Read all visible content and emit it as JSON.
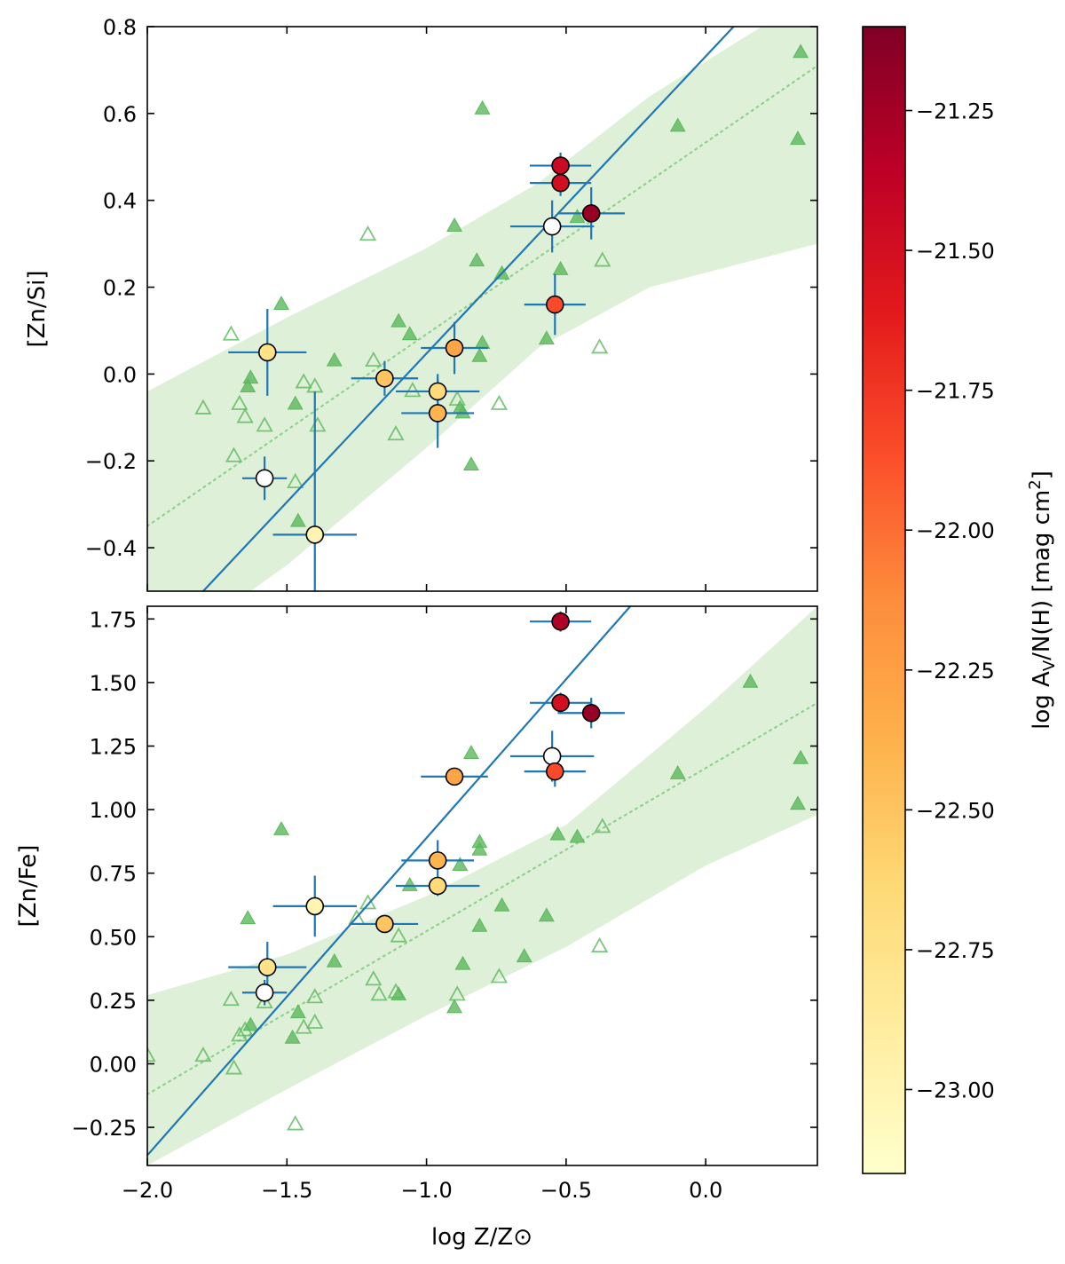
{
  "chart_data": [
    {
      "type": "scatter",
      "panel": "top",
      "ylabel": "[Zn/Si]",
      "xlim": [
        -2.0,
        0.4
      ],
      "ylim": [
        -0.5,
        0.8
      ],
      "yticks": [
        -0.4,
        -0.2,
        0.0,
        0.2,
        0.4,
        0.6,
        0.8
      ],
      "ytick_labels": [
        "−0.4",
        "−0.2",
        "0.0",
        "0.2",
        "0.4",
        "0.6",
        "0.8"
      ],
      "fit_line": {
        "x": [
          -1.8,
          0.1
        ],
        "y": [
          -0.5,
          0.8
        ]
      },
      "reference_fit": {
        "x": [
          -2.0,
          0.4
        ],
        "y": [
          -0.35,
          0.71
        ]
      },
      "confidence_band": {
        "x": [
          -2.0,
          -1.5,
          -1.0,
          -0.6,
          -0.2,
          0.4
        ],
        "upper": [
          -0.04,
          0.13,
          0.29,
          0.44,
          0.64,
          0.88
        ],
        "lower": [
          -0.67,
          -0.44,
          -0.17,
          0.06,
          0.2,
          0.3
        ]
      },
      "comparison_filled": [
        [
          -1.63,
          -0.01
        ],
        [
          -1.64,
          -0.03
        ],
        [
          -1.52,
          0.16
        ],
        [
          -1.47,
          -0.07
        ],
        [
          -1.46,
          -0.34
        ],
        [
          -1.33,
          0.03
        ],
        [
          -1.1,
          0.12
        ],
        [
          -1.06,
          0.09
        ],
        [
          -0.9,
          0.34
        ],
        [
          -0.88,
          -0.08
        ],
        [
          -0.87,
          -0.09
        ],
        [
          -0.84,
          -0.21
        ],
        [
          -0.82,
          0.26
        ],
        [
          -0.81,
          0.04
        ],
        [
          -0.8,
          0.61
        ],
        [
          -0.8,
          0.07
        ],
        [
          -0.73,
          0.23
        ],
        [
          -0.57,
          0.08
        ],
        [
          -0.52,
          0.24
        ],
        [
          -0.46,
          0.36
        ],
        [
          -0.1,
          0.57
        ],
        [
          0.33,
          0.54
        ],
        [
          0.34,
          0.74
        ]
      ],
      "comparison_open": [
        [
          -1.8,
          -0.08
        ],
        [
          -1.7,
          0.09
        ],
        [
          -1.69,
          -0.19
        ],
        [
          -1.67,
          -0.07
        ],
        [
          -1.65,
          -0.1
        ],
        [
          -1.58,
          -0.12
        ],
        [
          -1.47,
          -0.25
        ],
        [
          -1.44,
          -0.02
        ],
        [
          -1.4,
          -0.03
        ],
        [
          -1.39,
          -0.12
        ],
        [
          -1.21,
          0.32
        ],
        [
          -1.19,
          0.03
        ],
        [
          -1.05,
          -0.04
        ],
        [
          -1.11,
          -0.14
        ],
        [
          -0.89,
          -0.06
        ],
        [
          -0.74,
          -0.07
        ],
        [
          -0.38,
          0.06
        ],
        [
          -0.37,
          0.26
        ]
      ],
      "sample": [
        {
          "x": -0.52,
          "y": 0.48,
          "xerr": 0.11,
          "yerr": 0.03,
          "c": -21.45
        },
        {
          "x": -0.52,
          "y": 0.44,
          "xerr": 0.11,
          "yerr": 0.03,
          "c": -21.5
        },
        {
          "x": -0.41,
          "y": 0.37,
          "xerr": 0.12,
          "yerr": 0.06,
          "c": -21.2
        },
        {
          "x": -0.55,
          "y": 0.34,
          "xerr": 0.15,
          "yerr": 0.06,
          "c": null
        },
        {
          "x": -0.54,
          "y": 0.16,
          "xerr": 0.11,
          "yerr": 0.07,
          "c": -21.85
        },
        {
          "x": -0.9,
          "y": 0.06,
          "xerr": 0.12,
          "yerr": 0.06,
          "c": -22.3
        },
        {
          "x": -1.15,
          "y": -0.01,
          "xerr": 0.12,
          "yerr": 0.04,
          "c": -22.5
        },
        {
          "x": -0.96,
          "y": -0.04,
          "xerr": 0.15,
          "yerr": 0.04,
          "c": -22.65
        },
        {
          "x": -0.96,
          "y": -0.09,
          "xerr": 0.13,
          "yerr": 0.08,
          "c": -22.4
        },
        {
          "x": -1.57,
          "y": 0.05,
          "xerr": 0.14,
          "yerr": 0.1,
          "c": -22.75
        },
        {
          "x": -1.58,
          "y": -0.24,
          "xerr": 0.08,
          "yerr": 0.05,
          "c": null
        },
        {
          "x": -1.4,
          "y": -0.37,
          "xerr": 0.15,
          "yerr": 0.33,
          "c": -23.0
        }
      ]
    },
    {
      "type": "scatter",
      "panel": "bottom",
      "xlabel": "log Z/Z⊙",
      "ylabel": "[Zn/Fe]",
      "xlim": [
        -2.0,
        0.4
      ],
      "ylim": [
        -0.4,
        1.8
      ],
      "yticks": [
        -0.25,
        0.0,
        0.25,
        0.5,
        0.75,
        1.0,
        1.25,
        1.5,
        1.75
      ],
      "ytick_labels": [
        "−0.25",
        "0.00",
        "0.25",
        "0.50",
        "0.75",
        "1.00",
        "1.25",
        "1.50",
        "1.75"
      ],
      "xticks": [
        -2.0,
        -1.5,
        -1.0,
        -0.5,
        0.0
      ],
      "xtick_labels": [
        "−2.0",
        "−1.5",
        "−1.0",
        "−0.5",
        "0.0"
      ],
      "fit_line": {
        "x": [
          -2.0,
          -0.27
        ],
        "y": [
          -0.36,
          1.8
        ]
      },
      "reference_fit": {
        "x": [
          -2.0,
          0.4
        ],
        "y": [
          -0.12,
          1.42
        ]
      },
      "confidence_band": {
        "x": [
          -2.0,
          -1.5,
          -1.0,
          -0.5,
          0.0,
          0.4
        ],
        "upper": [
          0.27,
          0.43,
          0.66,
          0.94,
          1.4,
          1.8
        ],
        "lower": [
          -0.4,
          -0.1,
          0.19,
          0.46,
          0.78,
          0.98
        ]
      },
      "comparison_filled": [
        [
          -1.63,
          0.15
        ],
        [
          -1.64,
          0.57
        ],
        [
          -1.52,
          0.92
        ],
        [
          -1.48,
          0.1
        ],
        [
          -1.46,
          0.2
        ],
        [
          -1.33,
          0.4
        ],
        [
          -1.1,
          0.27
        ],
        [
          -1.06,
          0.7
        ],
        [
          -0.9,
          0.22
        ],
        [
          -0.88,
          0.78
        ],
        [
          -0.87,
          0.39
        ],
        [
          -0.84,
          1.22
        ],
        [
          -0.81,
          0.54
        ],
        [
          -0.81,
          0.87
        ],
        [
          -0.81,
          0.84
        ],
        [
          -0.73,
          0.62
        ],
        [
          -0.65,
          0.42
        ],
        [
          -0.57,
          0.58
        ],
        [
          -0.53,
          0.9
        ],
        [
          -0.46,
          0.89
        ],
        [
          -0.1,
          1.14
        ],
        [
          0.16,
          1.5
        ],
        [
          0.33,
          1.02
        ],
        [
          0.34,
          1.2
        ]
      ],
      "comparison_open": [
        [
          -2.0,
          0.03
        ],
        [
          -1.8,
          0.03
        ],
        [
          -1.7,
          0.25
        ],
        [
          -1.69,
          -0.02
        ],
        [
          -1.67,
          0.11
        ],
        [
          -1.65,
          0.13
        ],
        [
          -1.58,
          0.24
        ],
        [
          -1.47,
          -0.24
        ],
        [
          -1.44,
          0.14
        ],
        [
          -1.4,
          0.16
        ],
        [
          -1.4,
          0.26
        ],
        [
          -1.25,
          0.57
        ],
        [
          -1.21,
          0.63
        ],
        [
          -1.19,
          0.33
        ],
        [
          -1.17,
          0.27
        ],
        [
          -1.11,
          0.28
        ],
        [
          -1.1,
          0.5
        ],
        [
          -0.89,
          0.27
        ],
        [
          -0.74,
          0.34
        ],
        [
          -0.38,
          0.46
        ],
        [
          -0.37,
          0.93
        ]
      ],
      "sample": [
        {
          "x": -0.52,
          "y": 1.74,
          "xerr": 0.11,
          "yerr": 0.04,
          "c": -21.3
        },
        {
          "x": -0.52,
          "y": 1.42,
          "xerr": 0.11,
          "yerr": 0.04,
          "c": -21.5
        },
        {
          "x": -0.41,
          "y": 1.38,
          "xerr": 0.12,
          "yerr": 0.06,
          "c": -21.2
        },
        {
          "x": -0.55,
          "y": 1.21,
          "xerr": 0.15,
          "yerr": 0.1,
          "c": null
        },
        {
          "x": -0.54,
          "y": 1.15,
          "xerr": 0.11,
          "yerr": 0.06,
          "c": -21.85
        },
        {
          "x": -0.9,
          "y": 1.13,
          "xerr": 0.12,
          "yerr": 0.03,
          "c": -22.3
        },
        {
          "x": -0.96,
          "y": 0.8,
          "xerr": 0.13,
          "yerr": 0.08,
          "c": -22.4
        },
        {
          "x": -0.96,
          "y": 0.7,
          "xerr": 0.15,
          "yerr": 0.04,
          "c": -22.65
        },
        {
          "x": -1.15,
          "y": 0.55,
          "xerr": 0.12,
          "yerr": 0.03,
          "c": -22.5
        },
        {
          "x": -1.4,
          "y": 0.62,
          "xerr": 0.15,
          "yerr": 0.12,
          "c": -23.0
        },
        {
          "x": -1.57,
          "y": 0.38,
          "xerr": 0.14,
          "yerr": 0.1,
          "c": -22.75
        },
        {
          "x": -1.58,
          "y": 0.28,
          "xerr": 0.08,
          "yerr": 0.05,
          "c": null
        }
      ]
    }
  ],
  "colorbar": {
    "label_prefix": "log A",
    "label_sub": "V",
    "label_mid": "/N(H) [mag cm",
    "label_sup": "2",
    "label_suffix": "]",
    "range": [
      -23.15,
      -21.1
    ],
    "ticks": [
      -21.25,
      -21.5,
      -21.75,
      -22.0,
      -22.25,
      -22.5,
      -22.75,
      -23.0
    ],
    "tick_labels": [
      "−21.25",
      "−21.50",
      "−21.75",
      "−22.00",
      "−22.25",
      "−22.50",
      "−22.75",
      "−23.00"
    ],
    "colormap": "YlOrRd",
    "stops": [
      "#ffffcc",
      "#ffeda0",
      "#fed976",
      "#feb24c",
      "#fd8d3c",
      "#fc4e2a",
      "#e31a1c",
      "#bd0026",
      "#800026"
    ]
  },
  "colors": {
    "fit_line": "#1f77b4",
    "errorbar": "#1f77b4",
    "comparison": "#5cb85c",
    "band": "#dff0d8",
    "no_value_fill": "#ffffff"
  }
}
